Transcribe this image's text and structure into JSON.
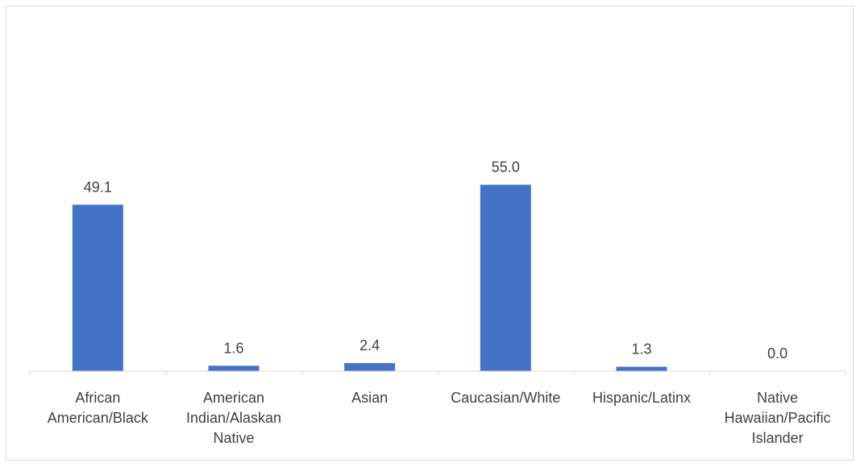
{
  "chart_data": {
    "type": "bar",
    "title": "",
    "xlabel": "",
    "ylabel": "",
    "categories": [
      [
        "African",
        "American/Black"
      ],
      [
        "American",
        "Indian/Alaskan",
        "Native"
      ],
      [
        "Asian"
      ],
      [
        "Caucasian/White"
      ],
      [
        "Hispanic/Latinx"
      ],
      [
        "Native",
        "Hawaiian/Pacific",
        "Islander"
      ]
    ],
    "values": [
      49.1,
      1.6,
      2.4,
      55.0,
      1.3,
      0.0
    ],
    "value_labels": [
      "49.1",
      "1.6",
      "2.4",
      "55.0",
      "1.3",
      "0.0"
    ],
    "ylim": [
      0,
      100
    ],
    "grid": false,
    "legend": "none",
    "bar_color": "#4472C4",
    "axis_color": "#d9d9d9",
    "text_color": "#404040"
  }
}
